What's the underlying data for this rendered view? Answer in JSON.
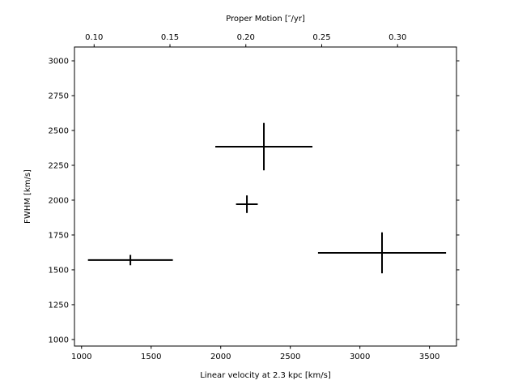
{
  "chart_data": {
    "type": "scatter",
    "style": "errorbar",
    "xlabel": "Linear velocity at 2.3 kpc [km/s]",
    "ylabel": "FWHM [km/s]",
    "top_xlabel": "Proper Motion [″/yr]",
    "xlim": [
      949,
      3694
    ],
    "ylim": [
      953,
      3099
    ],
    "xticks": [
      1000,
      1500,
      2000,
      2500,
      3000,
      3500
    ],
    "yticks": [
      1000,
      1250,
      1500,
      1750,
      2000,
      2250,
      2500,
      2750,
      3000
    ],
    "top_xticks": [
      0.1,
      0.15,
      0.2,
      0.25,
      0.3
    ],
    "top_xtick_labels": [
      "0.10",
      "0.15",
      "0.20",
      "0.25",
      "0.30"
    ],
    "top_axis_velocity_per_unit": 10902,
    "grid": false,
    "color": "#000000",
    "points": [
      {
        "x": 1351,
        "y": 1570,
        "xerr": 305,
        "yerr": 37
      },
      {
        "x": 2310,
        "y": 2384,
        "xerr": 349,
        "yerr": 170
      },
      {
        "x": 2188,
        "y": 1971,
        "xerr": 78,
        "yerr": 63
      },
      {
        "x": 3159,
        "y": 1622,
        "xerr": 460,
        "yerr": 147
      }
    ]
  }
}
